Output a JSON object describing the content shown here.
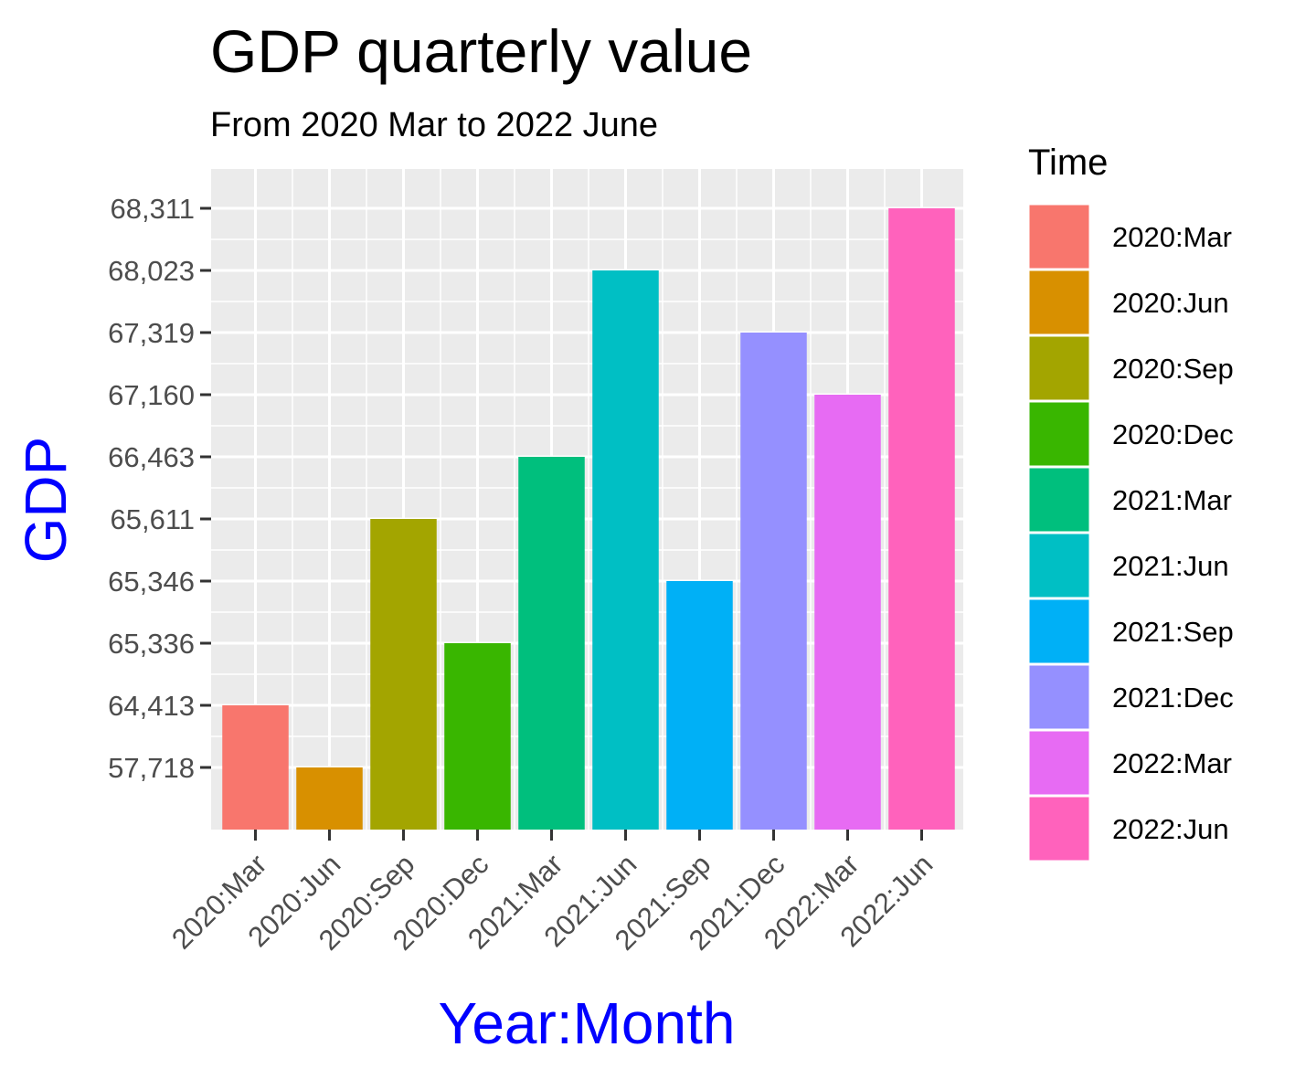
{
  "chart_data": {
    "type": "bar",
    "title": "GDP quarterly value",
    "subtitle": "From 2020 Mar to 2022 June",
    "xlabel": "Year:Month",
    "ylabel": "GDP",
    "axis_title_color": "#0000FF",
    "y_scale": "discrete (ordinal rank of values; ticks are the distinct values)",
    "categories": [
      "2020:Mar",
      "2020:Jun",
      "2020:Sep",
      "2020:Dec",
      "2021:Mar",
      "2021:Jun",
      "2021:Sep",
      "2021:Dec",
      "2022:Mar",
      "2022:Jun"
    ],
    "values": [
      64413,
      57718,
      65611,
      65336,
      66463,
      68023,
      65346,
      67319,
      67160,
      68311
    ],
    "y_tick_labels": [
      "57,718",
      "64,413",
      "65,336",
      "65,346",
      "65,611",
      "66,463",
      "67,160",
      "67,319",
      "68,023",
      "68,311"
    ],
    "colors": [
      "#F8766D",
      "#D89000",
      "#A3A500",
      "#39B600",
      "#00BF7D",
      "#00BFC4",
      "#00B0F6",
      "#9590FF",
      "#E76BF3",
      "#FF62BC"
    ],
    "panel_background": "#EBEBEB",
    "grid": true,
    "legend": {
      "title": "Time",
      "placement": "right",
      "entries": [
        "2020:Mar",
        "2020:Jun",
        "2020:Sep",
        "2020:Dec",
        "2021:Mar",
        "2021:Jun",
        "2021:Sep",
        "2021:Dec",
        "2022:Mar",
        "2022:Jun"
      ]
    }
  }
}
